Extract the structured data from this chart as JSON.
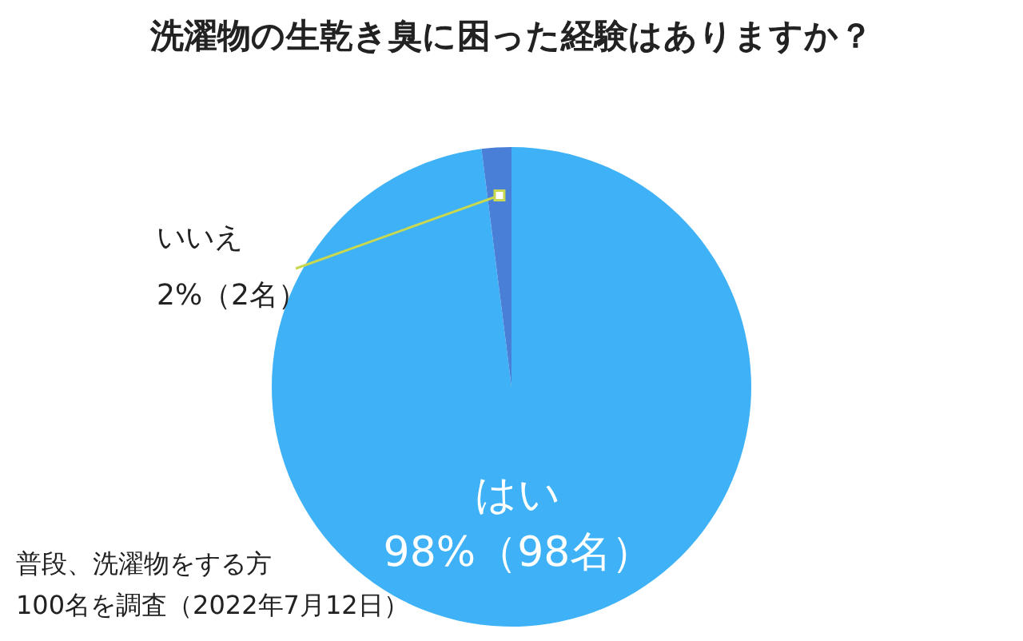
{
  "chart_data": {
    "type": "pie",
    "title": "洗濯物の生乾き臭に困った経験はありますか？",
    "categories": [
      "はい",
      "いいえ"
    ],
    "values": [
      98,
      2
    ],
    "colors": [
      "#3fb2f7",
      "#4a7fd8"
    ],
    "value_labels": [
      "98%（98名）",
      "2%（2名）"
    ],
    "legend": false,
    "annotations": [
      "普段、洗濯物をする方",
      "100名を調査（2022年7月12日）"
    ]
  }
}
